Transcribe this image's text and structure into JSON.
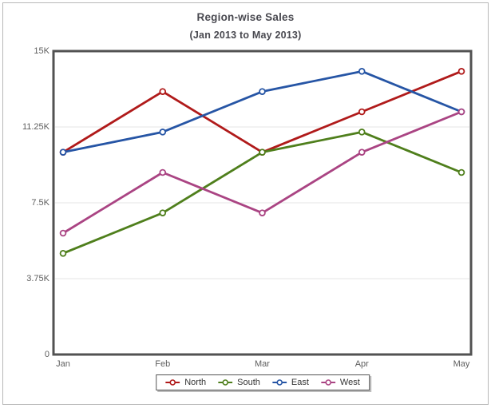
{
  "chart": {
    "title": "Region-wise Sales",
    "subtitle": "(Jan 2013 to May 2013)"
  },
  "chart_data": {
    "type": "line",
    "title": "Region-wise Sales",
    "subtitle": "(Jan 2013 to May 2013)",
    "categories": [
      "Jan",
      "Feb",
      "Mar",
      "Apr",
      "May"
    ],
    "series": [
      {
        "name": "North",
        "color": "#b01a1a",
        "values": [
          10000,
          13000,
          10000,
          12000,
          14000
        ]
      },
      {
        "name": "South",
        "color": "#4f7f1c",
        "values": [
          5000,
          7000,
          10000,
          11000,
          9000
        ]
      },
      {
        "name": "East",
        "color": "#2655a5",
        "values": [
          10000,
          11000,
          13000,
          14000,
          12000
        ]
      },
      {
        "name": "West",
        "color": "#aa4483",
        "values": [
          6000,
          9000,
          7000,
          10000,
          12000
        ]
      }
    ],
    "ylim": [
      0,
      15000
    ],
    "yticks": [
      {
        "value": 0,
        "label": "0"
      },
      {
        "value": 3750,
        "label": "3.75K"
      },
      {
        "value": 7500,
        "label": "7.5K"
      },
      {
        "value": 11250,
        "label": "11.25K"
      },
      {
        "value": 15000,
        "label": "15K"
      }
    ],
    "grid": "horizontal",
    "legend_position": "bottom",
    "marker_style": "hollow-circle",
    "canvas_border_color": "#525252",
    "gridline_color": "#e4e4e4"
  }
}
